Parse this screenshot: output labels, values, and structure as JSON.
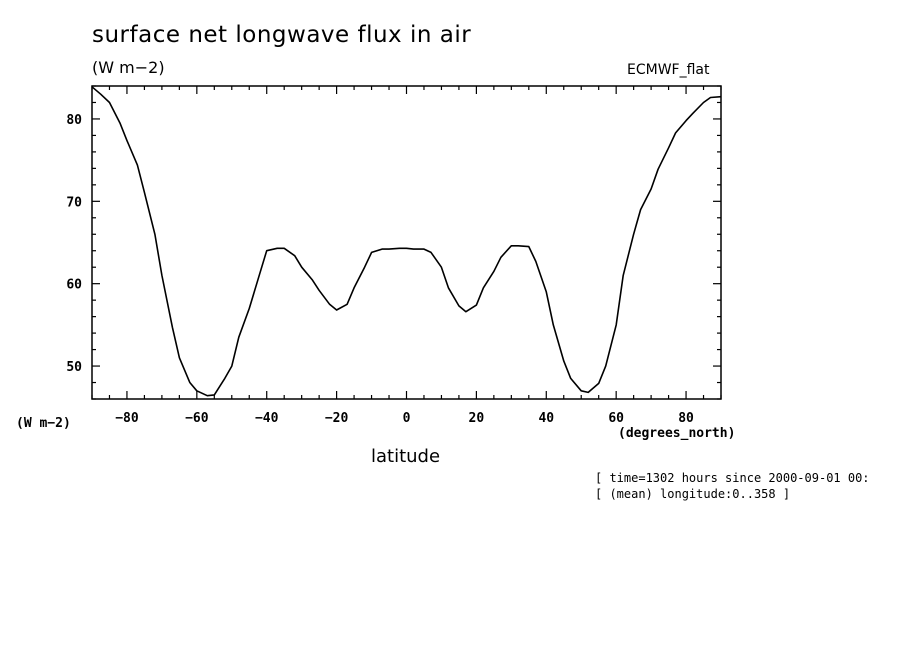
{
  "chart_data": {
    "type": "line",
    "title": "surface net longwave flux in air",
    "units_label": "(W m−2)",
    "units_left_label": "(W m−2)",
    "dataset": "ECMWF_flat",
    "xlabel": "latitude",
    "x_units": "(degrees_north)",
    "ylabel": "(W m−2)",
    "xlim": [
      -90,
      90
    ],
    "ylim": [
      46,
      84
    ],
    "x_major_ticks": [
      -80,
      -60,
      -40,
      -20,
      0,
      20,
      40,
      60,
      80
    ],
    "x_tick_labels": [
      "−80",
      "−60",
      "−40",
      "−20",
      "0",
      "20",
      "40",
      "60",
      "80"
    ],
    "y_major_ticks": [
      50,
      60,
      70,
      80
    ],
    "y_tick_labels": [
      "50",
      "60",
      "70",
      "80"
    ],
    "annotations": [
      "[ time=1302 hours since 2000-09-01 00:",
      "[ (mean) longitude:0..358 ]"
    ],
    "series": [
      {
        "name": "surface net longwave flux in air",
        "x": [
          -90,
          -87.5,
          -85,
          -82,
          -80,
          -77,
          -75,
          -72,
          -70,
          -67,
          -65,
          -62,
          -60,
          -57,
          -55,
          -52,
          -50,
          -48,
          -45,
          -42,
          -40,
          -37,
          -35,
          -32,
          -30,
          -27,
          -25,
          -22,
          -20,
          -17,
          -15,
          -12,
          -10,
          -7,
          -5,
          -2,
          0,
          2,
          5,
          7,
          10,
          12,
          15,
          17,
          20,
          22,
          25,
          27,
          30,
          32,
          35,
          37,
          40,
          42,
          45,
          47,
          50,
          52,
          55,
          57,
          60,
          62,
          65,
          67,
          70,
          72,
          75,
          77,
          80,
          82,
          85,
          87,
          90
        ],
        "y": [
          83.9,
          83.0,
          82.0,
          79.5,
          77.4,
          74.4,
          71.1,
          66.0,
          61.0,
          54.7,
          51.0,
          48.0,
          47.0,
          46.4,
          46.5,
          48.5,
          50.0,
          53.5,
          57.0,
          61.2,
          64.0,
          64.3,
          64.3,
          63.4,
          62.0,
          60.5,
          59.2,
          57.5,
          56.8,
          57.5,
          59.5,
          62.0,
          63.8,
          64.2,
          64.2,
          64.3,
          64.3,
          64.2,
          64.2,
          63.8,
          62.0,
          59.5,
          57.3,
          56.6,
          57.4,
          59.5,
          61.5,
          63.2,
          64.6,
          64.6,
          64.5,
          62.7,
          59.0,
          55.0,
          50.6,
          48.5,
          47.0,
          46.8,
          47.9,
          50.0,
          55.0,
          61.0,
          66.0,
          69.0,
          71.5,
          73.9,
          76.5,
          78.3,
          79.8,
          80.7,
          82.0,
          82.6,
          82.7
        ]
      }
    ]
  }
}
